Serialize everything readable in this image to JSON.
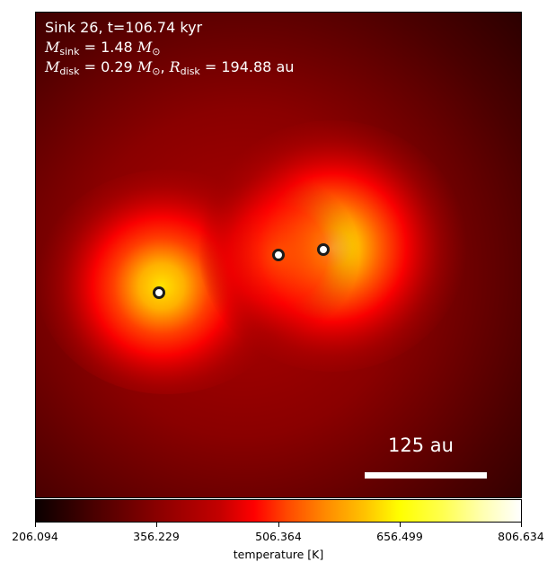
{
  "info": {
    "line1": "Sink 26, t=106.74 kyr",
    "msink_sym": "M",
    "msink_sub": "sink",
    "msink_val": " = 1.48 ",
    "mdisk_sym": "M",
    "mdisk_sub": "disk",
    "mdisk_val": " = 0.29 ",
    "solar_sym": "M",
    "solar_sub": "⊙",
    "rdisk_sep": ", ",
    "rdisk_sym": "R",
    "rdisk_sub": "disk",
    "rdisk_val": " = 194.88 au"
  },
  "scalebar": {
    "label": "125 au"
  },
  "colorbar": {
    "label": "temperature [K]",
    "ticks": [
      "206.094",
      "356.229",
      "506.364",
      "656.499",
      "806.634"
    ],
    "colors": [
      "#000000",
      "#ff0000",
      "#ffff00",
      "#ffffff"
    ]
  }
}
